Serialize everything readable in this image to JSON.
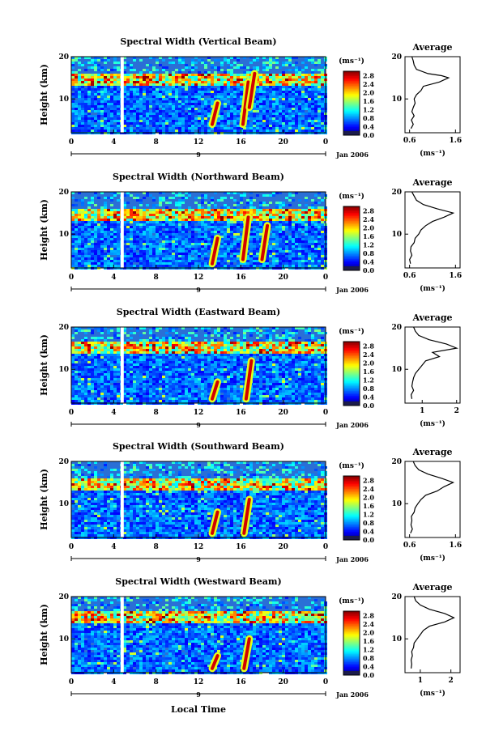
{
  "chart_data": [
    {
      "type": "heatmap",
      "title": "Spectral Width (Vertical Beam)",
      "ylabel": "Height (km)",
      "x_ticks": [
        "0",
        "4",
        "8",
        "12",
        "16",
        "20",
        "0"
      ],
      "y_ticks": [
        "20",
        "10"
      ],
      "date_marker": "9",
      "date_label": "Jan 2006",
      "colorbar": {
        "unit": "(ms⁻¹)",
        "ticks": [
          "2.8",
          "2.4",
          "2.0",
          "1.6",
          "1.2",
          "0.8",
          "0.4",
          "0.0"
        ],
        "range": [
          0,
          3.0
        ]
      },
      "xlim": [
        0,
        24
      ],
      "ylim": [
        2,
        20
      ],
      "features": {
        "gap_time": 4.8,
        "tropopause_km": 14.5,
        "streaks": [
          [
            13.3,
            4,
            9
          ],
          [
            16.2,
            4,
            14
          ],
          [
            16.8,
            8,
            16
          ]
        ]
      },
      "average_profile": {
        "title": "Average",
        "xlabel": "(ms⁻¹)",
        "x_ticks": [
          "0.6",
          "1.6"
        ],
        "xlim": [
          0.5,
          1.7
        ],
        "y_ticks": [
          "20",
          "10"
        ],
        "profile": [
          [
            3,
            0.63
          ],
          [
            4,
            0.68
          ],
          [
            5,
            0.64
          ],
          [
            6,
            0.7
          ],
          [
            7,
            0.65
          ],
          [
            8,
            0.68
          ],
          [
            9,
            0.72
          ],
          [
            10,
            0.7
          ],
          [
            11,
            0.75
          ],
          [
            12,
            0.85
          ],
          [
            13,
            0.9
          ],
          [
            14,
            1.25
          ],
          [
            15,
            1.45
          ],
          [
            15.5,
            1.3
          ],
          [
            16,
            1.0
          ],
          [
            17,
            0.75
          ],
          [
            18,
            0.7
          ],
          [
            19,
            0.68
          ],
          [
            20,
            0.65
          ]
        ]
      }
    },
    {
      "type": "heatmap",
      "title": "Spectral Width (Northward Beam)",
      "ylabel": "Height (km)",
      "x_ticks": [
        "0",
        "4",
        "8",
        "12",
        "16",
        "20",
        "0"
      ],
      "y_ticks": [
        "20",
        "10"
      ],
      "date_marker": "9",
      "date_label": "Jan 2006",
      "colorbar": {
        "unit": "(ms⁻¹)",
        "ticks": [
          "2.8",
          "2.4",
          "2.0",
          "1.6",
          "1.2",
          "0.8",
          "0.4",
          "0.0"
        ],
        "range": [
          0,
          3.0
        ]
      },
      "xlim": [
        0,
        24
      ],
      "ylim": [
        2,
        20
      ],
      "features": {
        "gap_time": 4.8,
        "tropopause_km": 14.5,
        "streaks": [
          [
            13.3,
            3,
            9
          ],
          [
            16.2,
            4,
            14
          ],
          [
            18.0,
            4,
            12
          ]
        ]
      },
      "average_profile": {
        "title": "Average",
        "xlabel": "(ms⁻¹)",
        "x_ticks": [
          "0.6",
          "1.6"
        ],
        "xlim": [
          0.5,
          1.7
        ],
        "y_ticks": [
          "20",
          "10"
        ],
        "profile": [
          [
            3,
            0.62
          ],
          [
            4,
            0.6
          ],
          [
            5,
            0.65
          ],
          [
            6,
            0.62
          ],
          [
            7,
            0.63
          ],
          [
            8,
            0.7
          ],
          [
            9,
            0.72
          ],
          [
            10,
            0.8
          ],
          [
            11,
            0.85
          ],
          [
            12,
            0.95
          ],
          [
            13,
            1.1
          ],
          [
            14,
            1.35
          ],
          [
            15,
            1.55
          ],
          [
            16,
            1.2
          ],
          [
            17,
            0.9
          ],
          [
            18,
            0.75
          ],
          [
            19,
            0.7
          ],
          [
            20,
            0.65
          ]
        ]
      }
    },
    {
      "type": "heatmap",
      "title": "Spectral Width (Eastward Beam)",
      "ylabel": "Height (km)",
      "x_ticks": [
        "0",
        "4",
        "8",
        "12",
        "16",
        "20",
        "0"
      ],
      "y_ticks": [
        "20",
        "10"
      ],
      "date_marker": "9",
      "date_label": "Jan 2006",
      "colorbar": {
        "unit": "(ms⁻¹)",
        "ticks": [
          "2.8",
          "2.4",
          "2.0",
          "1.6",
          "1.2",
          "0.8",
          "0.4",
          "0.0"
        ],
        "range": [
          0,
          3.0
        ]
      },
      "xlim": [
        0,
        24
      ],
      "ylim": [
        2,
        20
      ],
      "features": {
        "gap_time": 4.8,
        "tropopause_km": 15,
        "streaks": [
          [
            13.3,
            3,
            7
          ],
          [
            16.5,
            3,
            12
          ]
        ]
      },
      "average_profile": {
        "title": "Average",
        "xlabel": "(ms⁻¹)",
        "x_ticks": [
          "1",
          "2"
        ],
        "xlim": [
          0.5,
          2.1
        ],
        "y_ticks": [
          "20",
          "10"
        ],
        "profile": [
          [
            3,
            0.7
          ],
          [
            4,
            0.68
          ],
          [
            5,
            0.75
          ],
          [
            6,
            0.7
          ],
          [
            7,
            0.72
          ],
          [
            8,
            0.75
          ],
          [
            9,
            0.8
          ],
          [
            10,
            0.9
          ],
          [
            11,
            1.0
          ],
          [
            12,
            1.1
          ],
          [
            13,
            1.5
          ],
          [
            14,
            1.3
          ],
          [
            15,
            2.0
          ],
          [
            16,
            1.7
          ],
          [
            17,
            1.2
          ],
          [
            18,
            0.9
          ],
          [
            19,
            0.8
          ],
          [
            20,
            0.75
          ]
        ]
      }
    },
    {
      "type": "heatmap",
      "title": "Spectral Width (Southward Beam)",
      "ylabel": "Height (km)",
      "x_ticks": [
        "0",
        "4",
        "8",
        "12",
        "16",
        "20",
        "0"
      ],
      "y_ticks": [
        "20",
        "10"
      ],
      "date_marker": "9",
      "date_label": "Jan 2006",
      "colorbar": {
        "unit": "(ms⁻¹)",
        "ticks": [
          "2.8",
          "2.4",
          "2.0",
          "1.6",
          "1.2",
          "0.8",
          "0.4",
          "0.0"
        ],
        "range": [
          0,
          3.0
        ]
      },
      "xlim": [
        0,
        24
      ],
      "ylim": [
        2,
        20
      ],
      "features": {
        "gap_time": 4.8,
        "tropopause_km": 14.5,
        "streaks": [
          [
            13.3,
            3,
            8
          ],
          [
            16.3,
            3,
            11
          ]
        ]
      },
      "average_profile": {
        "title": "Average",
        "xlabel": "(ms⁻¹)",
        "x_ticks": [
          "0.6",
          "1.6"
        ],
        "xlim": [
          0.5,
          1.7
        ],
        "y_ticks": [
          "20",
          "10"
        ],
        "profile": [
          [
            3,
            0.62
          ],
          [
            4,
            0.66
          ],
          [
            5,
            0.63
          ],
          [
            6,
            0.65
          ],
          [
            7,
            0.64
          ],
          [
            8,
            0.7
          ],
          [
            9,
            0.72
          ],
          [
            10,
            0.78
          ],
          [
            11,
            0.85
          ],
          [
            12,
            0.95
          ],
          [
            13,
            1.2
          ],
          [
            14,
            1.35
          ],
          [
            15,
            1.55
          ],
          [
            16,
            1.3
          ],
          [
            17,
            1.0
          ],
          [
            18,
            0.8
          ],
          [
            19,
            0.72
          ],
          [
            20,
            0.68
          ]
        ]
      }
    },
    {
      "type": "heatmap",
      "title": "Spectral Width (Westward Beam)",
      "ylabel": "Height (km)",
      "x_ticks": [
        "0",
        "4",
        "8",
        "12",
        "16",
        "20",
        "0"
      ],
      "y_ticks": [
        "20",
        "10"
      ],
      "date_marker": "9",
      "date_label": "Jan 2006",
      "colorbar": {
        "unit": "(ms⁻¹)",
        "ticks": [
          "2.8",
          "2.4",
          "2.0",
          "1.6",
          "1.2",
          "0.8",
          "0.4",
          "0.0"
        ],
        "range": [
          0,
          3.0
        ]
      },
      "xlim": [
        0,
        24
      ],
      "ylim": [
        2,
        20
      ],
      "features": {
        "gap_time": 4.8,
        "tropopause_km": 15,
        "streaks": [
          [
            13.3,
            3,
            6
          ],
          [
            16.3,
            3,
            10
          ]
        ]
      },
      "average_profile": {
        "title": "Average",
        "xlabel": "(ms⁻¹)",
        "x_ticks": [
          "1",
          "2"
        ],
        "xlim": [
          0.5,
          2.3
        ],
        "y_ticks": [
          "20",
          "10"
        ],
        "profile": [
          [
            3,
            0.7
          ],
          [
            4,
            0.72
          ],
          [
            5,
            0.7
          ],
          [
            6,
            0.74
          ],
          [
            7,
            0.72
          ],
          [
            8,
            0.78
          ],
          [
            9,
            0.8
          ],
          [
            10,
            0.9
          ],
          [
            11,
            1.0
          ],
          [
            12,
            1.1
          ],
          [
            13,
            1.3
          ],
          [
            14,
            1.8
          ],
          [
            15,
            2.1
          ],
          [
            16,
            1.8
          ],
          [
            17,
            1.3
          ],
          [
            18,
            1.0
          ],
          [
            19,
            0.85
          ],
          [
            20,
            0.8
          ]
        ]
      }
    }
  ],
  "xlabel": "Local Time"
}
